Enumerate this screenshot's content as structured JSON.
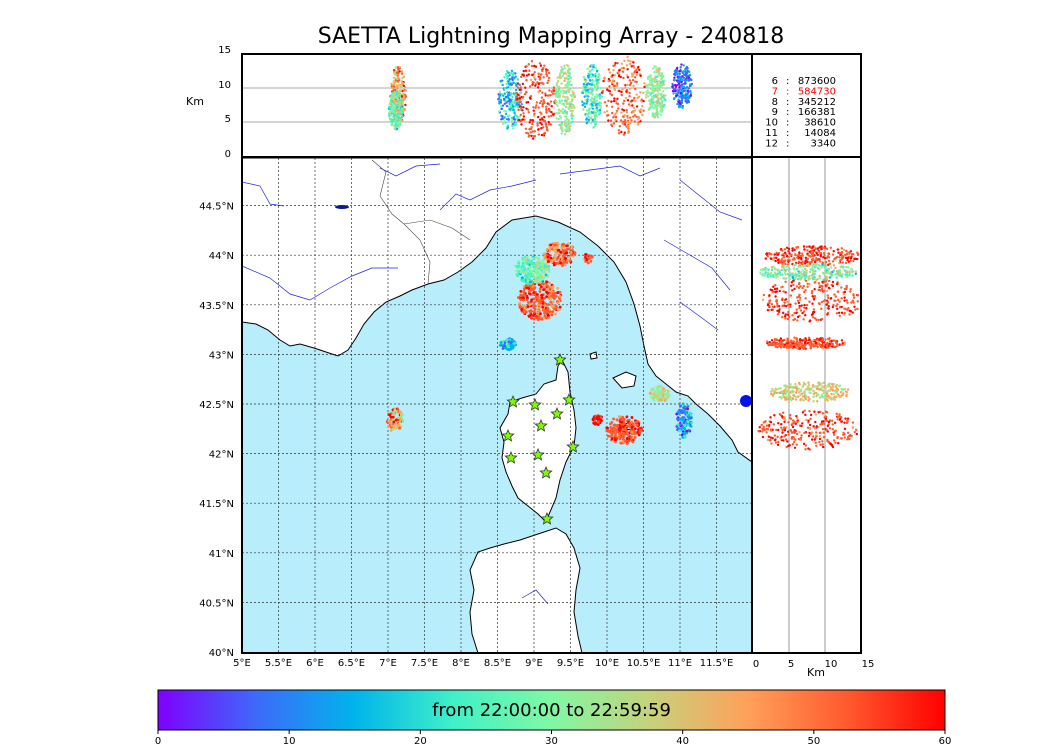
{
  "title": "SAETTA Lightning Mapping Array - 240818",
  "colorbar": {
    "label": "from 22:00:00 to 22:59:59",
    "ticks": [
      "0",
      "10",
      "20",
      "30",
      "40",
      "50",
      "60"
    ],
    "colors": [
      "#7f00ff",
      "#3d6afa",
      "#00b4eb",
      "#40f0c8",
      "#80f8a4",
      "#c6d27c",
      "#ffa05a",
      "#ff5a2e",
      "#ff0000"
    ]
  },
  "altitude_panel": {
    "ylabel": "Km",
    "yticks": [
      "0",
      "5",
      "10",
      "15"
    ]
  },
  "side_panel": {
    "xlabel": "Km",
    "xticks": [
      "0",
      "5",
      "10",
      "15"
    ]
  },
  "station_counts": [
    {
      "stations": "6",
      "count": "873600",
      "highlight": false
    },
    {
      "stations": "7",
      "count": "584730",
      "highlight": true
    },
    {
      "stations": "8",
      "count": "345212",
      "highlight": false
    },
    {
      "stations": "9",
      "count": "166381",
      "highlight": false
    },
    {
      "stations": "10",
      "count": "38610",
      "highlight": false
    },
    {
      "stations": "11",
      "count": "14084",
      "highlight": false
    },
    {
      "stations": "12",
      "count": "3340",
      "highlight": false
    }
  ],
  "map": {
    "lon_labels": [
      "5°E",
      "5.5°E",
      "6°E",
      "6.5°E",
      "7°E",
      "7.5°E",
      "8°E",
      "8.5°E",
      "9°E",
      "9.5°E",
      "10°E",
      "10.5°E",
      "11°E",
      "11.5°E"
    ],
    "lat_labels": [
      "40°N",
      "40.5°N",
      "41°N",
      "41.5°N",
      "42°N",
      "42.5°N",
      "43°N",
      "43.5°N",
      "44°N",
      "44.5°N"
    ],
    "sea_color": "#b8eefc",
    "highlight_color": "#ff0000",
    "station_color": "#7cfc00"
  }
}
